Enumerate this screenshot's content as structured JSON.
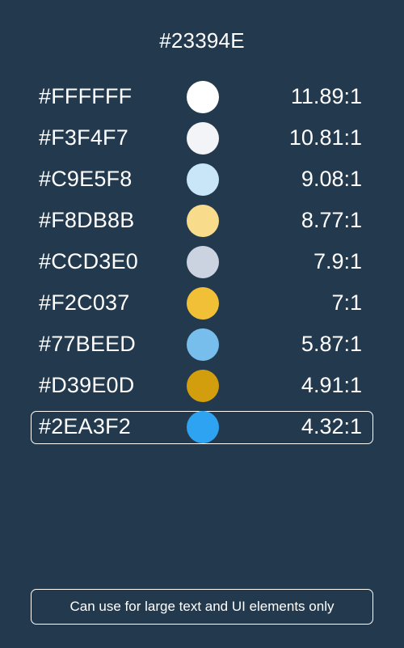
{
  "background_color": "#23394E",
  "title": "#23394E",
  "rows": [
    {
      "hex": "#FFFFFF",
      "color": "#FFFFFF",
      "ratio": "11.89:1"
    },
    {
      "hex": "#F3F4F7",
      "color": "#F3F4F7",
      "ratio": "10.81:1"
    },
    {
      "hex": "#C9E5F8",
      "color": "#C9E5F8",
      "ratio": "9.08:1"
    },
    {
      "hex": "#F8DB8B",
      "color": "#F8DB8B",
      "ratio": "8.77:1"
    },
    {
      "hex": "#CCD3E0",
      "color": "#CCD3E0",
      "ratio": "7.9:1"
    },
    {
      "hex": "#F2C037",
      "color": "#F2C037",
      "ratio": "7:1"
    },
    {
      "hex": "#77BEED",
      "color": "#77BEED",
      "ratio": "5.87:1"
    },
    {
      "hex": "#D39E0D",
      "color": "#D39E0D",
      "ratio": "4.91:1"
    },
    {
      "hex": "#2EA3F2",
      "color": "#2EA3F2",
      "ratio": "4.32:1",
      "highlighted": true
    }
  ],
  "note": "Can use for large text and UI elements only"
}
